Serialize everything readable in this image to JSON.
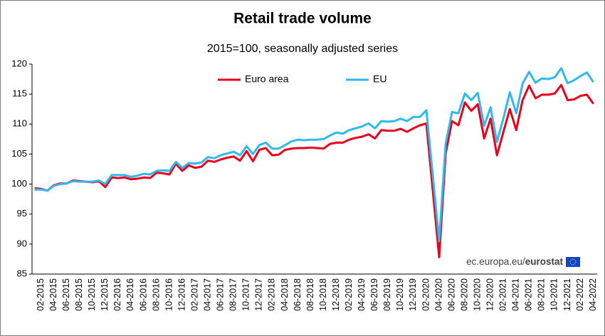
{
  "chart_data": {
    "type": "line",
    "title": "Retail trade volume",
    "subtitle": "2015=100, seasonally adjusted series",
    "source": "ec.europa.eu/",
    "source_brand": "eurostat",
    "categories": [
      null,
      "02-2015",
      null,
      "04-2015",
      null,
      "06-2015",
      null,
      "08-2015",
      null,
      "10-2015",
      null,
      "12-2015",
      null,
      "02-2016",
      null,
      "04-2016",
      null,
      "06-2016",
      null,
      "08-2016",
      null,
      "10-2016",
      null,
      "12-2016",
      null,
      "02-2017",
      null,
      "04-2017",
      null,
      "06-2017",
      null,
      "08-2017",
      null,
      "10-2017",
      null,
      "12-2017",
      null,
      "02-2018",
      null,
      "04-2018",
      null,
      "06-2018",
      null,
      "08-2018",
      null,
      "10-2018",
      null,
      "12-2018",
      null,
      "02-2019",
      null,
      "04-2019",
      null,
      "06-2019",
      null,
      "08-2019",
      null,
      "10-2019",
      null,
      "12-2019",
      null,
      "02-2020",
      null,
      "04-2020",
      null,
      "06-2020",
      null,
      "08-2020",
      null,
      "10-2020",
      null,
      "12-2020",
      null,
      "02-2021",
      null,
      "04-2021",
      null,
      "06-2021",
      null,
      "08-2021",
      null,
      "10-2021",
      null,
      "12-2021",
      null,
      "02-2022",
      null,
      "04-2022"
    ],
    "series": [
      {
        "name": "Euro area",
        "color": "#e8001c",
        "values": [
          99.3,
          99.2,
          98.9,
          99.8,
          100.1,
          100.1,
          100.6,
          100.5,
          100.4,
          100.3,
          100.5,
          99.5,
          101.1,
          101.0,
          101.1,
          100.8,
          100.9,
          101.1,
          101.0,
          101.9,
          101.8,
          101.6,
          103.4,
          102.2,
          103.1,
          102.7,
          102.9,
          103.9,
          103.7,
          104.1,
          104.4,
          104.6,
          103.9,
          105.5,
          103.8,
          105.7,
          106.0,
          104.8,
          104.9,
          105.7,
          105.9,
          106.0,
          106.0,
          106.1,
          106.0,
          105.9,
          106.7,
          106.9,
          106.9,
          107.4,
          107.7,
          107.9,
          108.3,
          107.6,
          109.0,
          108.9,
          108.9,
          109.2,
          108.7,
          109.3,
          109.8,
          110.1,
          99.0,
          87.8,
          105.1,
          110.5,
          109.8,
          113.6,
          112.2,
          113.3,
          107.6,
          110.9,
          104.8,
          108.7,
          112.5,
          109.0,
          114.0,
          116.4,
          114.3,
          114.9,
          114.9,
          115.1,
          116.5,
          114.0,
          114.1,
          114.7,
          114.9,
          113.4
        ]
      },
      {
        "name": "EU",
        "color": "#2fb9ec",
        "values": [
          99.1,
          99.1,
          98.9,
          99.7,
          100.0,
          100.1,
          100.5,
          100.4,
          100.4,
          100.4,
          100.6,
          100.0,
          101.5,
          101.5,
          101.5,
          101.2,
          101.4,
          101.7,
          101.6,
          102.2,
          102.3,
          102.2,
          103.7,
          102.7,
          103.5,
          103.4,
          103.6,
          104.5,
          104.3,
          104.8,
          105.1,
          105.4,
          104.8,
          106.3,
          105.0,
          106.5,
          106.9,
          105.9,
          105.9,
          106.5,
          107.1,
          107.4,
          107.3,
          107.4,
          107.4,
          107.5,
          108.1,
          108.6,
          108.4,
          109.0,
          109.3,
          109.6,
          110.1,
          109.3,
          110.5,
          110.4,
          110.5,
          110.9,
          110.5,
          111.2,
          111.2,
          112.3,
          101.5,
          90.5,
          106.7,
          112.0,
          111.8,
          115.1,
          114.0,
          115.2,
          109.7,
          112.8,
          107.0,
          111.0,
          115.3,
          111.8,
          116.8,
          118.7,
          116.9,
          117.6,
          117.5,
          117.8,
          119.3,
          116.8,
          117.3,
          118.0,
          118.6,
          117.0
        ]
      }
    ],
    "ylim": [
      85,
      120
    ],
    "yticks": [
      85,
      90,
      95,
      100,
      105,
      110,
      115,
      120
    ],
    "grid": false,
    "legend": "top-left"
  }
}
